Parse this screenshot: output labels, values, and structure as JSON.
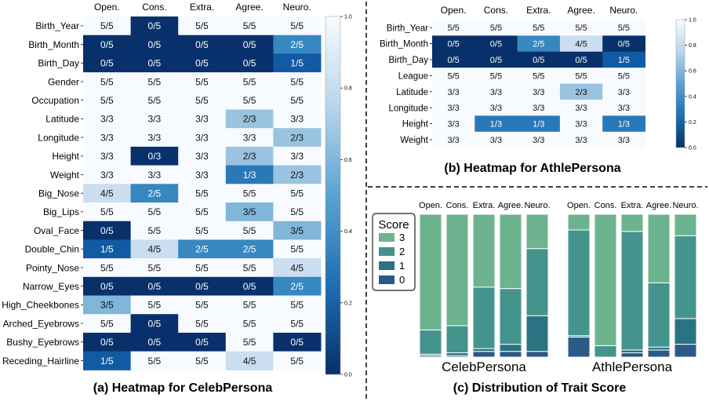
{
  "figure": {
    "captions": {
      "a": "(a) Heatmap  for CelebPersona",
      "b": "(b) Heatmap for AthlePersona",
      "c": "(c) Distribution of Trait Score"
    }
  },
  "chart_data": [
    {
      "id": "celeb_heatmap",
      "type": "heatmap",
      "title": "(a) Heatmap  for CelebPersona",
      "columns": [
        "Open.",
        "Cons.",
        "Extra.",
        "Agree.",
        "Neuro."
      ],
      "rows": [
        "Birth_Year",
        "Birth_Month",
        "Birth_Day",
        "Gender",
        "Occupation",
        "Latitude",
        "Longitude",
        "Height",
        "Weight",
        "Big_Nose",
        "Big_Lips",
        "Oval_Face",
        "Double_Chin",
        "Pointy_Nose",
        "Narrow_Eyes",
        "High_Cheekbones",
        "Arched_Eyebrows",
        "Bushy_Eyebrows",
        "Receding_Hairline"
      ],
      "cells": [
        [
          "5/5",
          "0/5",
          "5/5",
          "5/5",
          "5/5"
        ],
        [
          "0/5",
          "0/5",
          "0/5",
          "0/5",
          "2/5"
        ],
        [
          "0/5",
          "0/5",
          "0/5",
          "0/5",
          "1/5"
        ],
        [
          "5/5",
          "5/5",
          "5/5",
          "5/5",
          "5/5"
        ],
        [
          "5/5",
          "5/5",
          "5/5",
          "5/5",
          "5/5"
        ],
        [
          "3/3",
          "3/3",
          "3/3",
          "2/3",
          "3/3"
        ],
        [
          "3/3",
          "3/3",
          "3/3",
          "3/3",
          "2/3"
        ],
        [
          "3/3",
          "0/3",
          "3/3",
          "2/3",
          "3/3"
        ],
        [
          "3/3",
          "3/3",
          "3/3",
          "1/3",
          "2/3"
        ],
        [
          "4/5",
          "2/5",
          "5/5",
          "5/5",
          "5/5"
        ],
        [
          "5/5",
          "5/5",
          "5/5",
          "3/5",
          "5/5"
        ],
        [
          "0/5",
          "5/5",
          "5/5",
          "5/5",
          "3/5"
        ],
        [
          "1/5",
          "4/5",
          "2/5",
          "2/5",
          "5/5"
        ],
        [
          "5/5",
          "5/5",
          "5/5",
          "5/5",
          "4/5"
        ],
        [
          "0/5",
          "0/5",
          "0/5",
          "0/5",
          "2/5"
        ],
        [
          "3/5",
          "5/5",
          "5/5",
          "5/5",
          "5/5"
        ],
        [
          "5/5",
          "0/5",
          "5/5",
          "5/5",
          "5/5"
        ],
        [
          "0/5",
          "0/5",
          "0/5",
          "5/5",
          "0/5"
        ],
        [
          "1/5",
          "5/5",
          "5/5",
          "4/5",
          "5/5"
        ]
      ],
      "colorbar": {
        "min": 0.0,
        "max": 1.0,
        "ticks": [
          "0.0",
          "0.2",
          "0.4",
          "0.6",
          "0.8",
          "1.0"
        ],
        "colormap": "Blues_r"
      }
    },
    {
      "id": "athle_heatmap",
      "type": "heatmap",
      "title": "(b) Heatmap for AthlePersona",
      "columns": [
        "Open.",
        "Cons.",
        "Extra.",
        "Agree.",
        "Neuro."
      ],
      "rows": [
        "Birth_Year",
        "Birth_Month",
        "Birth_Day",
        "League",
        "Latitude",
        "Longitude",
        "Height",
        "Weight"
      ],
      "cells": [
        [
          "5/5",
          "5/5",
          "5/5",
          "5/5",
          "5/5"
        ],
        [
          "0/5",
          "0/5",
          "2/5",
          "4/5",
          "0/5"
        ],
        [
          "0/5",
          "0/5",
          "0/5",
          "0/5",
          "1/5"
        ],
        [
          "5/5",
          "5/5",
          "5/5",
          "5/5",
          "5/5"
        ],
        [
          "3/3",
          "3/3",
          "3/3",
          "2/3",
          "3/3"
        ],
        [
          "3/3",
          "3/3",
          "3/3",
          "3/3",
          "3/3"
        ],
        [
          "3/3",
          "1/3",
          "1/3",
          "3/3",
          "1/3"
        ],
        [
          "3/3",
          "3/3",
          "3/3",
          "3/3",
          "3/3"
        ]
      ],
      "colorbar": {
        "min": 0.0,
        "max": 1.0,
        "ticks": [
          "0.0",
          "0.2",
          "0.4",
          "0.6",
          "0.8",
          "1.0"
        ],
        "colormap": "Blues_r"
      }
    },
    {
      "id": "trait_distribution",
      "type": "bar",
      "stacked": true,
      "normalized": true,
      "title": "(c) Distribution of Trait Score",
      "legend": {
        "title": "Score",
        "entries": [
          "3",
          "2",
          "1",
          "0"
        ],
        "position": "top-left"
      },
      "series_colors": {
        "3": "#6db38f",
        "2": "#43948c",
        "1": "#2a7382",
        "0": "#2b5a86"
      },
      "groups": [
        {
          "name": "CelebPersona",
          "categories": [
            "Open.",
            "Cons.",
            "Extra.",
            "Agree.",
            "Neuro."
          ],
          "series": [
            {
              "name": "0",
              "values": [
                0.01,
                0.01,
                0.04,
                0.04,
                0.04
              ]
            },
            {
              "name": "1",
              "values": [
                0.01,
                0.02,
                0.02,
                0.05,
                0.25
              ]
            },
            {
              "name": "2",
              "values": [
                0.17,
                0.19,
                0.43,
                0.39,
                0.47
              ]
            },
            {
              "name": "3",
              "values": [
                0.81,
                0.78,
                0.51,
                0.52,
                0.24
              ]
            }
          ]
        },
        {
          "name": "AthlePersona",
          "categories": [
            "Open.",
            "Cons.",
            "Extra.",
            "Agree.",
            "Neuro."
          ],
          "series": [
            {
              "name": "0",
              "values": [
                0.14,
                0.0,
                0.03,
                0.05,
                0.09
              ]
            },
            {
              "name": "1",
              "values": [
                0.01,
                0.0,
                0.02,
                0.02,
                0.18
              ]
            },
            {
              "name": "2",
              "values": [
                0.74,
                0.08,
                0.83,
                0.45,
                0.58
              ]
            },
            {
              "name": "3",
              "values": [
                0.11,
                0.92,
                0.12,
                0.48,
                0.15
              ]
            }
          ]
        }
      ]
    }
  ]
}
